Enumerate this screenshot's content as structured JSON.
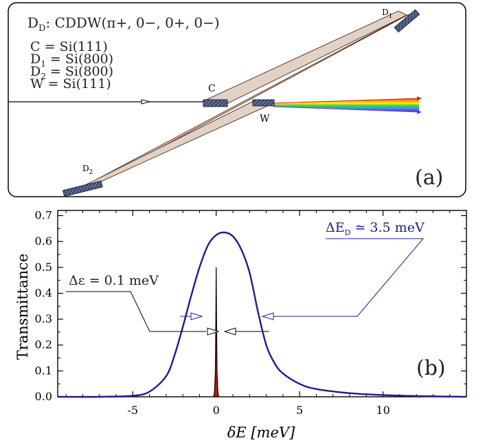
{
  "panel_a": {
    "title_prefix": "D",
    "title_prefix_sub": "D",
    "title_rest": ": CDDW(π+, 0−, 0+, 0−)",
    "lines": [
      {
        "lhs": "C",
        "sub": "",
        "rhs": " = Si(111)"
      },
      {
        "lhs": "D",
        "sub": "1",
        "rhs": " = Si(800)"
      },
      {
        "lhs": "D",
        "sub": "2",
        "rhs": " = Si(800)"
      },
      {
        "lhs": "W",
        "sub": "",
        "rhs": " = Si(111)"
      }
    ],
    "crystal_labels": {
      "C": "C",
      "W": "W",
      "D1": "D",
      "D1_sub": "1",
      "D2": "D",
      "D2_sub": "2"
    },
    "panel_label": "(a)",
    "colors": {
      "beam_fill": "#e2d2c6",
      "beam_edge": "#5a3a28",
      "crystal": "#3d4a6e",
      "crystal_hatch": "#9aa6c8"
    }
  },
  "panel_b": {
    "panel_label": "(b)",
    "annotation_narrow": "Δε = 0.1 meV",
    "annotation_wide_prefix": "ΔE",
    "annotation_wide_sub": "D",
    "annotation_wide_suffix": " ≃ 3.5 meV",
    "colors": {
      "wide": "#1c1c8a",
      "narrow_fill": "#cc1100",
      "narrow_edge": "#000000"
    }
  },
  "chart_data": {
    "type": "line",
    "title": "",
    "xlabel": "δE [meV]",
    "ylabel": "Transmittance",
    "xlim": [
      -9.5,
      15
    ],
    "ylim": [
      0,
      0.72
    ],
    "x_ticks": [
      -5,
      0,
      5,
      10
    ],
    "y_ticks": [
      0.0,
      0.1,
      0.2,
      0.3,
      0.4,
      0.5,
      0.6,
      0.7
    ],
    "x_tick_labels": [
      "-5",
      "0",
      "5",
      "10"
    ],
    "y_tick_labels": [
      "0.0",
      "0.1",
      "0.2",
      "0.3",
      "0.4",
      "0.5",
      "0.6",
      "0.7"
    ],
    "series": [
      {
        "x": [
          -9.5,
          -7,
          -5,
          -4,
          -3,
          -2.5,
          -2,
          -1.5,
          -1,
          -0.5,
          0,
          0.5,
          1,
          1.5,
          2,
          2.5,
          3,
          3.5,
          4,
          5,
          6,
          8,
          10,
          12,
          15
        ],
        "values": [
          0.0,
          0.0,
          0.004,
          0.02,
          0.08,
          0.16,
          0.27,
          0.39,
          0.5,
          0.585,
          0.625,
          0.635,
          0.62,
          0.57,
          0.48,
          0.33,
          0.2,
          0.13,
          0.09,
          0.05,
          0.03,
          0.014,
          0.007,
          0.003,
          0.0
        ]
      },
      {
        "x": [
          -0.15,
          -0.1,
          -0.05,
          -0.02,
          0,
          0.02,
          0.05,
          0.1,
          0.15
        ],
        "values": [
          0.0,
          0.02,
          0.1,
          0.3,
          0.5,
          0.3,
          0.1,
          0.02,
          0.0
        ]
      }
    ]
  }
}
